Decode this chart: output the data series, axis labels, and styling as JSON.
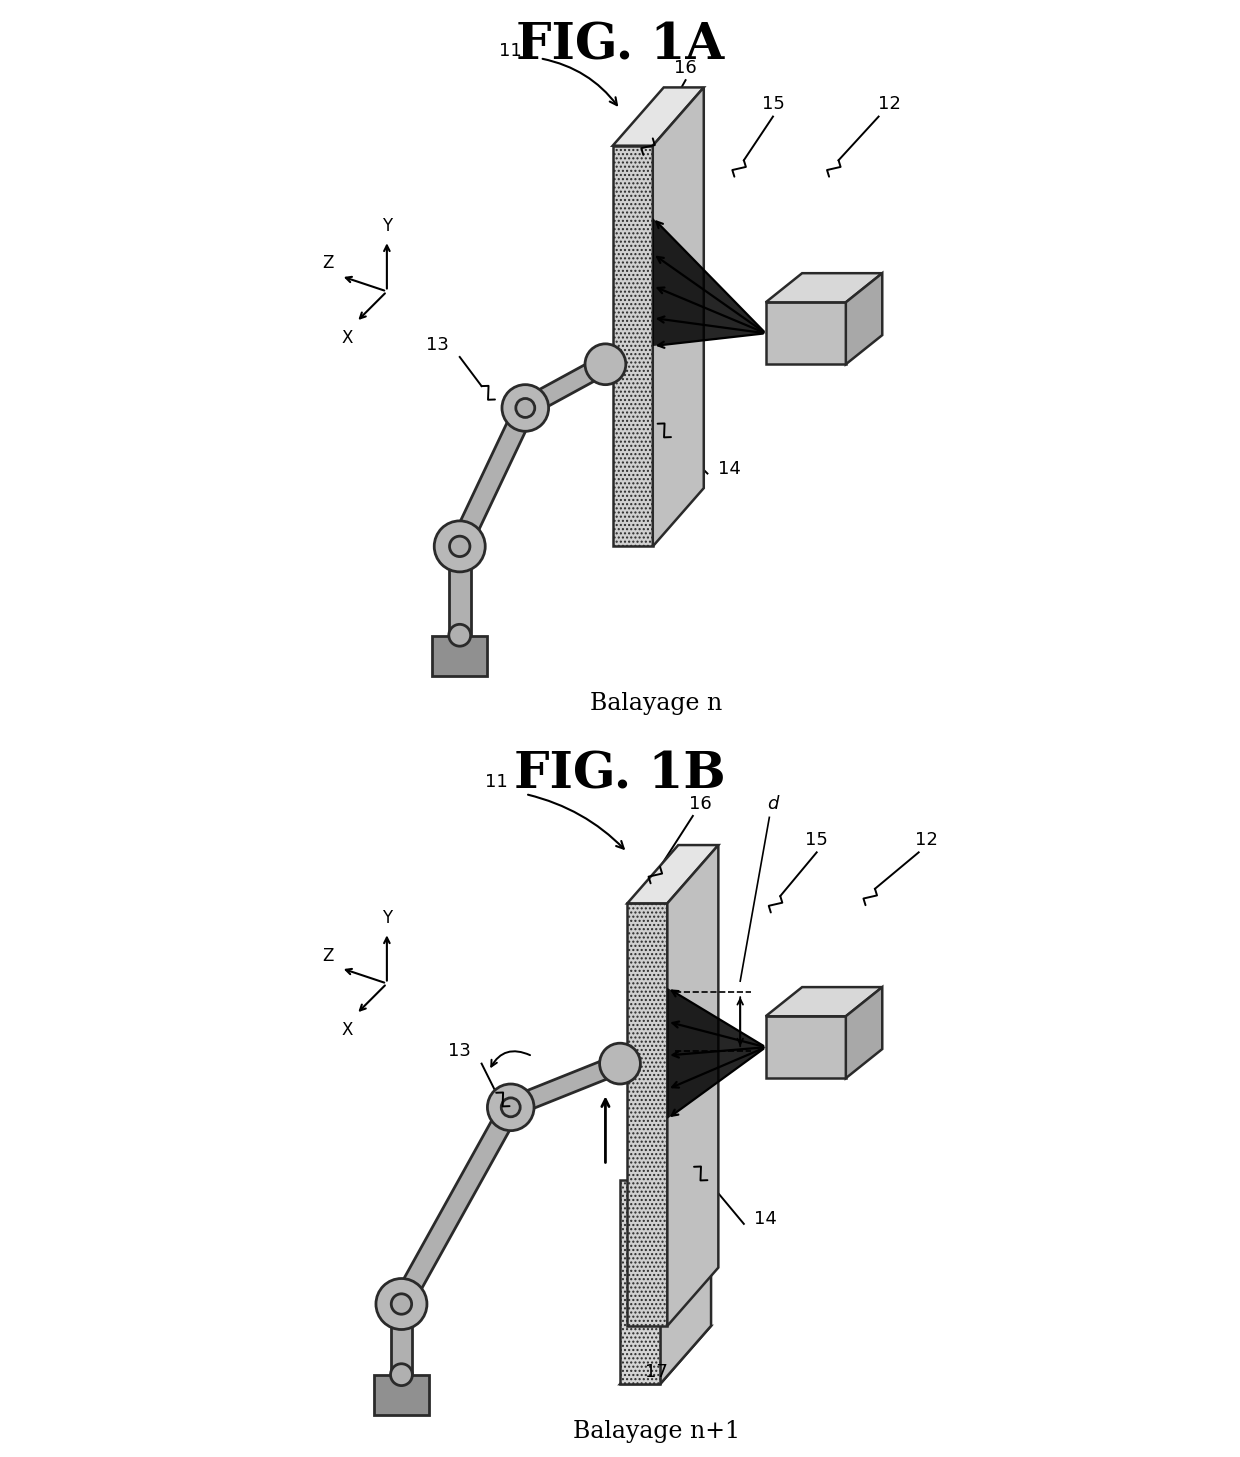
{
  "fig_title_A": "FIG. 1A",
  "fig_title_B": "FIG. 1B",
  "label_11": "11",
  "label_12": "12",
  "label_13": "13",
  "label_14": "14",
  "label_15": "15",
  "label_16": "16",
  "label_17": "17",
  "label_d": "d",
  "caption_A": "Balayage n",
  "caption_B": "Balayage n+1",
  "bg_color": "#ffffff",
  "gray_arm": "#b0b0b0",
  "gray_arm_outline": "#2a2a2a",
  "gray_panel": "#d0d0d0",
  "gray_box": "#c0c0c0"
}
